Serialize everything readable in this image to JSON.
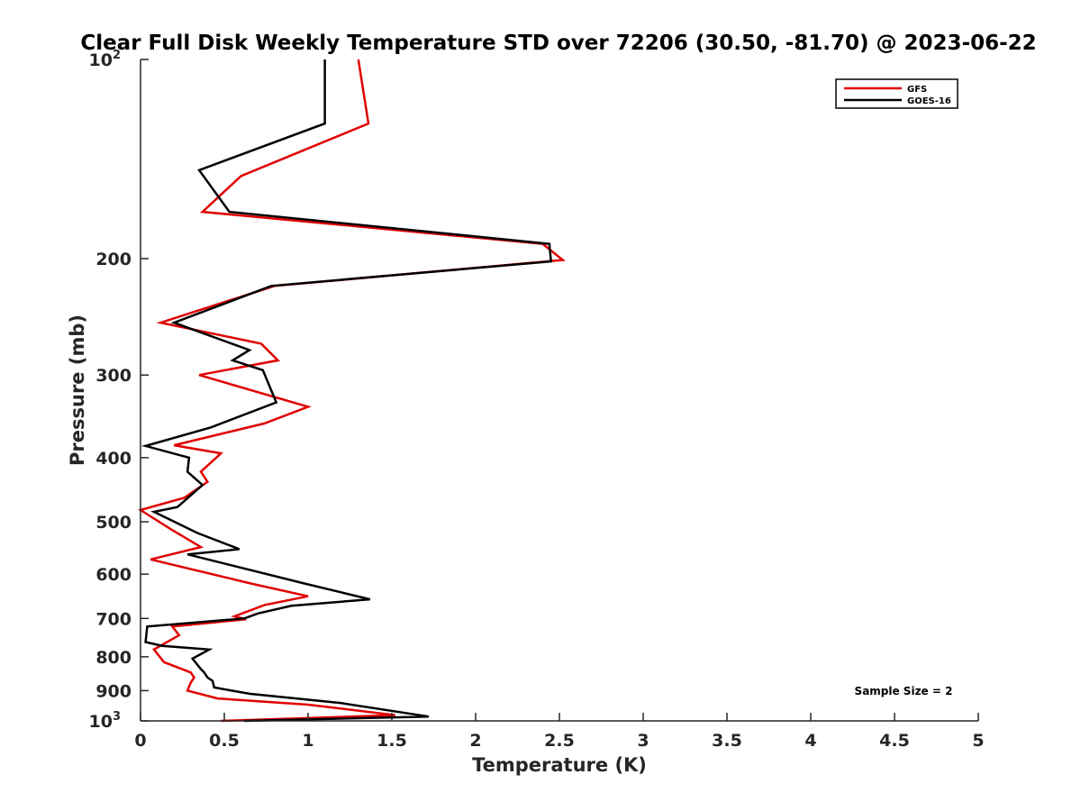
{
  "chart_data": {
    "type": "line",
    "title": "Clear Full Disk Weekly Temperature STD over 72206 (30.50, -81.70) @ 2023-06-22",
    "xlabel": "Temperature (K)",
    "ylabel": "Pressure (mb)",
    "xlim": [
      0,
      5
    ],
    "ylim": [
      100,
      1000
    ],
    "y_scale": "log",
    "y_reversed": true,
    "x_ticks": [
      "0",
      "0.5",
      "1",
      "1.5",
      "2",
      "2.5",
      "3",
      "3.5",
      "4",
      "4.5",
      "5"
    ],
    "y_ticks": [
      {
        "value": 100,
        "label": "10",
        "sup": "2"
      },
      {
        "value": 200,
        "label": "200"
      },
      {
        "value": 300,
        "label": "300"
      },
      {
        "value": 400,
        "label": "400"
      },
      {
        "value": 500,
        "label": "500"
      },
      {
        "value": 600,
        "label": "600"
      },
      {
        "value": 700,
        "label": "700"
      },
      {
        "value": 800,
        "label": "800"
      },
      {
        "value": 900,
        "label": "900"
      },
      {
        "value": 1000,
        "label": "10",
        "sup": "3"
      }
    ],
    "grid": false,
    "legend_position": "top-right",
    "annotation": "Sample Size = 2",
    "series": [
      {
        "name": "GFS",
        "color": "#e00000",
        "points": [
          [
            1.3,
            100
          ],
          [
            1.36,
            125
          ],
          [
            0.6,
            150
          ],
          [
            0.37,
            170
          ],
          [
            2.4,
            190
          ],
          [
            2.52,
            201
          ],
          [
            0.8,
            220
          ],
          [
            0.12,
            250
          ],
          [
            0.72,
            269
          ],
          [
            0.82,
            285
          ],
          [
            0.35,
            300
          ],
          [
            1.0,
            335
          ],
          [
            0.74,
            355
          ],
          [
            0.2,
            383
          ],
          [
            0.48,
            394
          ],
          [
            0.36,
            420
          ],
          [
            0.4,
            435
          ],
          [
            0.26,
            460
          ],
          [
            0.0,
            480
          ],
          [
            0.18,
            513
          ],
          [
            0.36,
            546
          ],
          [
            0.06,
            570
          ],
          [
            0.66,
            620
          ],
          [
            1.0,
            648
          ],
          [
            0.74,
            668
          ],
          [
            0.56,
            695
          ],
          [
            0.63,
            702
          ],
          [
            0.19,
            720
          ],
          [
            0.23,
            742
          ],
          [
            0.08,
            780
          ],
          [
            0.14,
            815
          ],
          [
            0.3,
            845
          ],
          [
            0.32,
            860
          ],
          [
            0.3,
            875
          ],
          [
            0.28,
            900
          ],
          [
            0.46,
            925
          ],
          [
            1.0,
            945
          ],
          [
            1.52,
            980
          ],
          [
            0.48,
            1000
          ]
        ]
      },
      {
        "name": "GOES-16",
        "color": "#000000",
        "points": [
          [
            1.1,
            100
          ],
          [
            1.1,
            125
          ],
          [
            0.35,
            147
          ],
          [
            0.53,
            170
          ],
          [
            2.44,
            190
          ],
          [
            2.45,
            202
          ],
          [
            0.78,
            220
          ],
          [
            0.2,
            250
          ],
          [
            0.65,
            275
          ],
          [
            0.55,
            285
          ],
          [
            0.73,
            295
          ],
          [
            0.81,
            330
          ],
          [
            0.42,
            360
          ],
          [
            0.03,
            384
          ],
          [
            0.29,
            400
          ],
          [
            0.28,
            420
          ],
          [
            0.37,
            440
          ],
          [
            0.22,
            475
          ],
          [
            0.08,
            483
          ],
          [
            0.34,
            520
          ],
          [
            0.59,
            550
          ],
          [
            0.28,
            560
          ],
          [
            0.98,
            620
          ],
          [
            1.37,
            655
          ],
          [
            0.9,
            670
          ],
          [
            0.7,
            688
          ],
          [
            0.62,
            700
          ],
          [
            0.04,
            720
          ],
          [
            0.03,
            760
          ],
          [
            0.13,
            770
          ],
          [
            0.41,
            780
          ],
          [
            0.31,
            805
          ],
          [
            0.36,
            835
          ],
          [
            0.38,
            845
          ],
          [
            0.4,
            860
          ],
          [
            0.43,
            870
          ],
          [
            0.44,
            890
          ],
          [
            0.65,
            910
          ],
          [
            1.2,
            940
          ],
          [
            1.72,
            985
          ],
          [
            0.62,
            1000
          ]
        ]
      }
    ]
  }
}
